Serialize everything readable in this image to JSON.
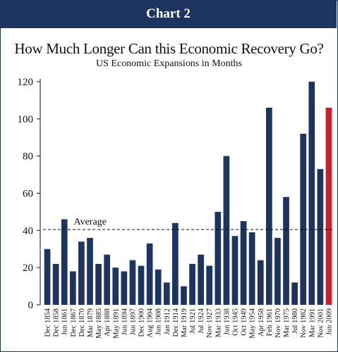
{
  "header": {
    "label": "Chart 2"
  },
  "chart_data": {
    "type": "bar",
    "title": "How Much Longer Can this Economic Recovery Go?",
    "subtitle": "US Economic Expansions in Months",
    "xlabel": "",
    "ylabel": "",
    "ylim": [
      0,
      120
    ],
    "yticks": [
      0,
      20,
      40,
      60,
      80,
      100,
      120
    ],
    "grid": false,
    "categories": [
      "Dec 1854",
      "Dec 1858",
      "Jun 1861",
      "Dec 1867",
      "Dec 1870",
      "Mar 1879",
      "May 1885",
      "Apr 1888",
      "May 1891",
      "Jun 1894",
      "Jun 1897",
      "Dec 1900",
      "Aug 1904",
      "Jun 1908",
      "Jan 1912",
      "Dec 1914",
      "Mar 1919",
      "Jul 1921",
      "Jul 1924",
      "Nov 1927",
      "Mar 1933",
      "Jun 1938",
      "Oct 1945",
      "Oct 1949",
      "May 1954",
      "Apr 1958",
      "Feb 1961",
      "Nov 1970",
      "Mar 1975",
      "Jul 1980",
      "Nov 1982",
      "Mar 1991",
      "Nov 2001",
      "Jun 2009"
    ],
    "values": [
      30,
      22,
      46,
      18,
      34,
      36,
      22,
      27,
      20,
      18,
      24,
      21,
      33,
      19,
      12,
      44,
      10,
      22,
      27,
      21,
      50,
      80,
      37,
      45,
      39,
      24,
      106,
      36,
      58,
      12,
      92,
      120,
      73,
      106
    ],
    "colors": {
      "bar": "#1d3461",
      "highlight": "#c8202f",
      "header": "#1d3461"
    },
    "highlight_index": 33,
    "average": {
      "value": 40.5,
      "label": "Average"
    }
  }
}
